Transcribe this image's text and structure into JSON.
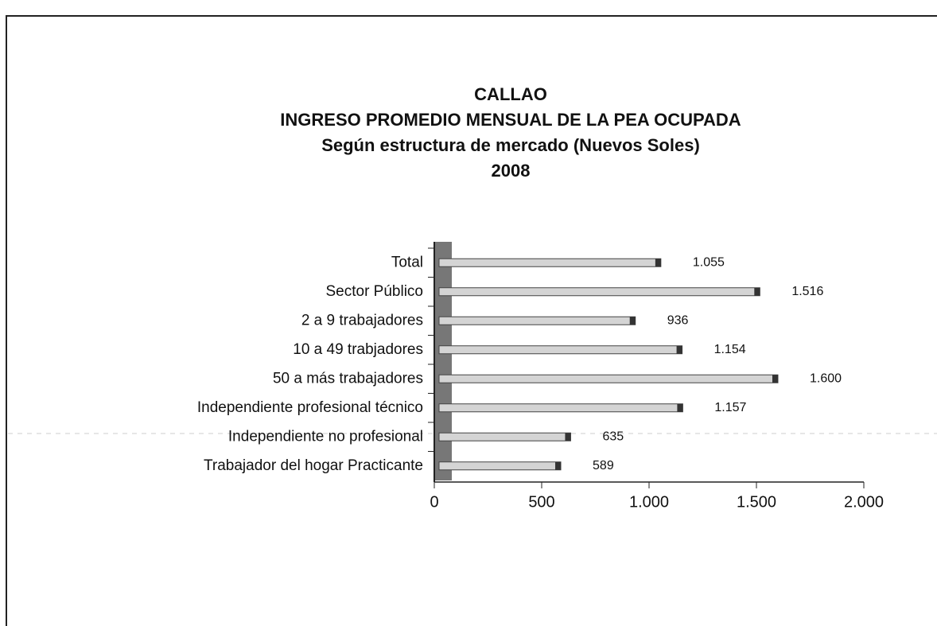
{
  "chart_data": {
    "type": "bar",
    "orientation": "horizontal",
    "title": [
      "CALLAO",
      "INGRESO PROMEDIO MENSUAL DE LA PEA OCUPADA",
      "Según estructura de mercado (Nuevos Soles)",
      "2008"
    ],
    "categories": [
      "Total",
      "Sector Público",
      "2 a 9 trabajadores",
      "10 a 49 trabjadores",
      "50 a más trabajadores",
      "Independiente  profesional técnico",
      "Independiente no profesional",
      "Trabajador del hogar Practicante"
    ],
    "values": [
      1055,
      1516,
      936,
      1154,
      1600,
      1157,
      635,
      589
    ],
    "value_labels": [
      "1.055",
      "1.516",
      "936",
      "1.154",
      "1.600",
      "1.157",
      "635",
      "589"
    ],
    "color": "#d4d4d4",
    "xlim": [
      0,
      2000
    ],
    "xticks": [
      0,
      500,
      {
        "value": 1000,
        "label": "1.000"
      },
      {
        "value": 1500,
        "label": "1.500"
      },
      {
        "value": 2000,
        "label": "2.000"
      }
    ],
    "grid": false
  }
}
